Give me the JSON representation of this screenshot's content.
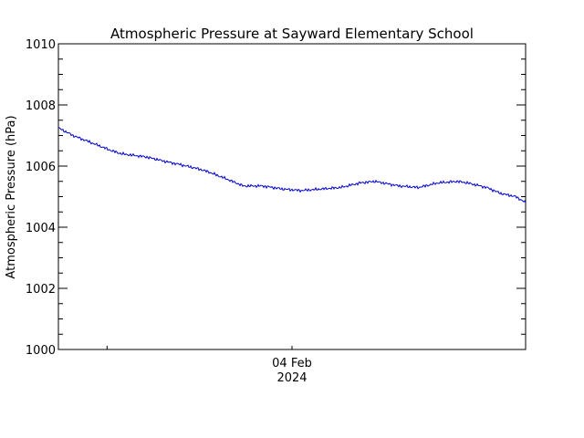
{
  "chart_data": {
    "type": "line",
    "title": "Atmospheric Pressure at Sayward Elementary School",
    "ylabel": "Atmospheric Pressure (hPa)",
    "xlabel": "",
    "ylim": [
      1000,
      1010
    ],
    "yticks": [
      1000,
      1002,
      1004,
      1006,
      1008,
      1010
    ],
    "y_tick_labels": [
      "1000",
      "1002",
      "1004",
      "1006",
      "1008",
      "1010"
    ],
    "xlim_hours": [
      -24,
      24
    ],
    "x_minor_ticks_hours": [
      -19,
      0
    ],
    "x_tick": {
      "hours": 0,
      "label_line1": "04 Feb",
      "label_line2": "2024"
    },
    "grid": false,
    "series": [
      {
        "color": "#0000cc",
        "x_hours": [
          -24,
          -22.5,
          -20.5,
          -18.5,
          -17.5,
          -15,
          -13,
          -11.5,
          -9.5,
          -8.5,
          -6.5,
          -5,
          -3,
          -1,
          1,
          3,
          5,
          7,
          8.5,
          11,
          13,
          15,
          17,
          18,
          20,
          21.5,
          23,
          24
        ],
        "values": [
          1007.25,
          1007.0,
          1006.75,
          1006.5,
          1006.4,
          1006.3,
          1006.15,
          1006.05,
          1005.9,
          1005.8,
          1005.55,
          1005.35,
          1005.35,
          1005.25,
          1005.2,
          1005.25,
          1005.3,
          1005.45,
          1005.5,
          1005.35,
          1005.3,
          1005.45,
          1005.5,
          1005.45,
          1005.3,
          1005.1,
          1005.0,
          1004.8
        ]
      }
    ]
  }
}
